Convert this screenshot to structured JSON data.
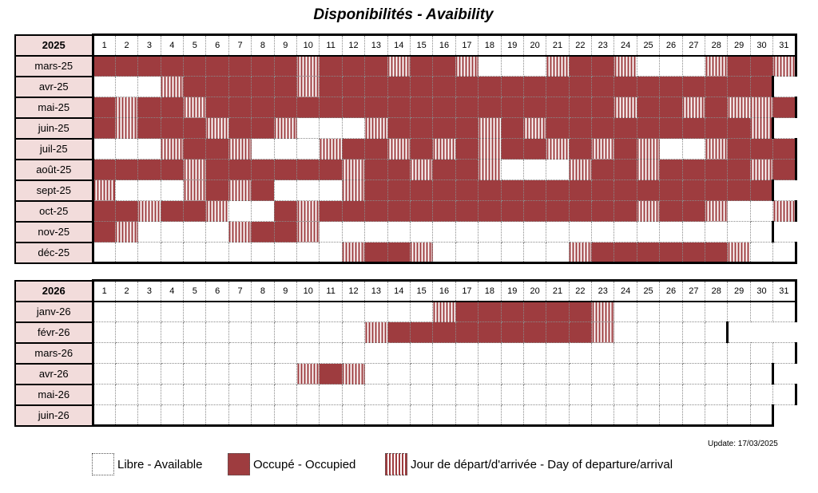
{
  "title": "Disponibilités - Avaibility",
  "update": "Update: 17/03/2025",
  "colors": {
    "occupied": "#9e3c3f",
    "header_bg": "#f2dcdb"
  },
  "legend": [
    {
      "type": "free",
      "label": "Libre - Available"
    },
    {
      "type": "occupied",
      "label": "Occupé - Occupied"
    },
    {
      "type": "transition",
      "label": "Jour de départ/d'arrivée - Day of departure/arrival"
    }
  ],
  "status_codes": {
    "F": "free",
    "O": "occupied",
    "T": "transition",
    "X": "not a day"
  },
  "blocks": [
    {
      "year": "2025",
      "days": [
        "1",
        "2",
        "3",
        "4",
        "5",
        "6",
        "7",
        "8",
        "9",
        "10",
        "11",
        "12",
        "13",
        "14",
        "15",
        "16",
        "17",
        "18",
        "19",
        "20",
        "21",
        "22",
        "23",
        "24",
        "25",
        "26",
        "27",
        "28",
        "29",
        "30",
        "31"
      ],
      "rows": [
        {
          "month": "mars-25",
          "days": "OOOOOOOOOTOOOTOOTFFFTOOTFFFTOOT"
        },
        {
          "month": "avr-25",
          "days": "FFFTOOOOOTOOOOOOOOOOOOOOOOOOOOX"
        },
        {
          "month": "mai-25",
          "days": "OTOOTOOOOOOOOOOOOOOOOOOTOOTOTTO"
        },
        {
          "month": "juin-25",
          "days": "OTOOOTOOTFFFTOOOOTOTOOOOOOOOOTX"
        },
        {
          "month": "juil-25",
          "days": "FFFTOOTFFFTOOTOTOTOOTOTOTFFTOOO"
        },
        {
          "month": "août-25",
          "days": "OOOOTOOOOOOTOOTOOTFFFTOOTOOOOTO"
        },
        {
          "month": "sept-25",
          "days": "TFFFTOTOFFFTOOOOOOOOOOOOOOOOOOX"
        },
        {
          "month": "oct-25",
          "days": "OOTOOTFFOTOOOOOOOOOOOOOOTOOTFFT"
        },
        {
          "month": "nov-25",
          "days": "OTFFFFTOOTFFFFFFFFFFFFFFFFFFFFX"
        },
        {
          "month": "déc-25",
          "days": "FFFFFFFFFFFTOOTFFFFFFTOOOOOOTFF"
        }
      ]
    },
    {
      "year": "2026",
      "days": [
        "1",
        "2",
        "3",
        "4",
        "5",
        "6",
        "7",
        "8",
        "9",
        "10",
        "11",
        "12",
        "13",
        "14",
        "15",
        "16",
        "17",
        "18",
        "19",
        "20",
        "21",
        "22",
        "23",
        "24",
        "25",
        "26",
        "27",
        "28",
        "29",
        "30",
        "31"
      ],
      "rows": [
        {
          "month": "janv-26",
          "days": "FFFFFFFFFFFFFFFTOOOOOOTFFFFFFFF"
        },
        {
          "month": "févr-26",
          "days": "FFFFFFFFFFFFTOOOOOOOOOTFFFFFXXX"
        },
        {
          "month": "mars-26",
          "days": "FFFFFFFFFFFFFFFFFFFFFFFFFFFFFFF"
        },
        {
          "month": "avr-26",
          "days": "FFFFFFFFFTOTFFFFFFFFFFFFFFFFFFX"
        },
        {
          "month": "mai-26",
          "days": "FFFFFFFFFFFFFFFFFFFFFFFFFFFFFFF"
        },
        {
          "month": "juin-26",
          "days": "FFFFFFFFFFFFFFFFFFFFFFFFFFFFFFX"
        }
      ]
    }
  ]
}
